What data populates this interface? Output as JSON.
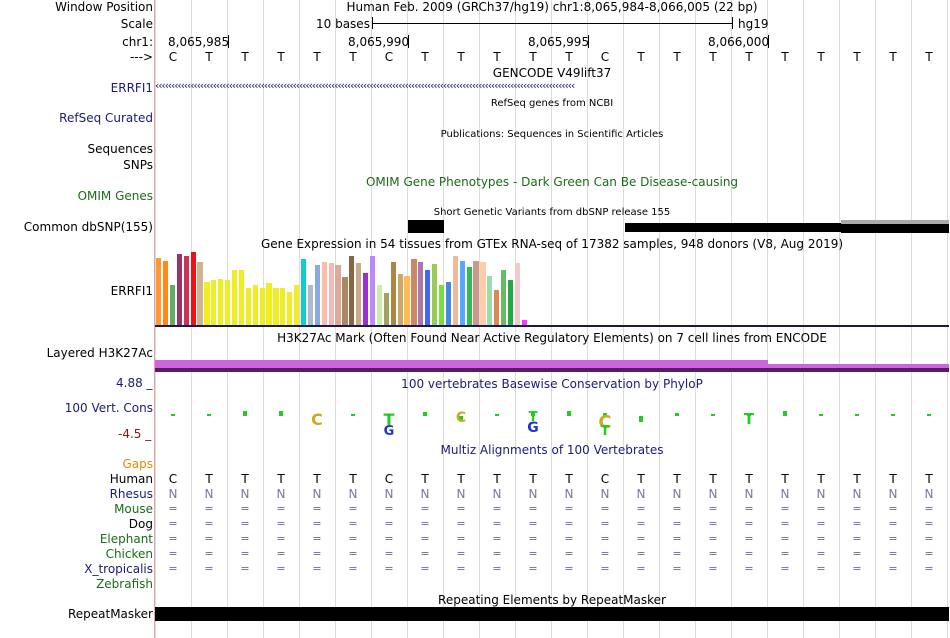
{
  "header": {
    "window_position_label": "Window Position",
    "window_position_value": "Human Feb. 2009 (GRCh37/hg19)   chr1:8,065,984-8,066,005 (22 bp)",
    "scale_label": "Scale",
    "scale_text": "10 bases",
    "scale_assembly": "hg19",
    "chrom_label": "chr1:",
    "coords": [
      "8,065,985",
      "8,065,990",
      "8,065,995",
      "8,066,000"
    ],
    "strand_label": "--->"
  },
  "sequence": [
    "C",
    "T",
    "T",
    "T",
    "T",
    "T",
    "C",
    "T",
    "T",
    "T",
    "T",
    "T",
    "C",
    "T",
    "T",
    "T",
    "T",
    "T",
    "T",
    "T",
    "T",
    "T"
  ],
  "tracks": {
    "gencode": {
      "title": "GENCODE V49lift37",
      "gene_label": "ERRFI1",
      "arrows": "‹‹‹‹‹‹‹‹‹‹‹‹‹‹‹‹‹‹‹‹‹‹‹‹‹‹‹‹‹‹‹‹‹‹‹‹‹‹‹‹‹‹‹‹‹‹‹‹‹‹‹‹‹‹‹‹‹‹‹‹‹‹‹‹‹‹‹‹‹‹‹‹‹‹‹‹‹‹‹‹‹‹‹‹‹‹‹‹‹‹‹‹‹‹‹‹‹‹‹‹‹‹‹‹‹‹‹‹‹‹‹‹‹‹‹‹‹‹‹‹‹‹‹‹‹‹‹‹‹‹‹"
    },
    "refseq": {
      "title": "RefSeq genes from NCBI",
      "label": "RefSeq Curated"
    },
    "publications": {
      "title": "Publications: Sequences in Scientific Articles",
      "label_line1": "Sequences",
      "label_line2": "SNPs"
    },
    "omim": {
      "title": "OMIM Gene Phenotypes - Dark Green Can Be Disease-causing",
      "label": "OMIM Genes"
    },
    "dbsnp": {
      "title": "Short Genetic Variants from dbSNP release 155",
      "label": "Common dbSNP(155)"
    },
    "gtex": {
      "title": "Gene Expression in 54 tissues from GTEx RNA-seq of 17382 samples, 948 donors (V8, Aug 2019)",
      "label": "ERRFI1"
    },
    "h3k27ac": {
      "title": "H3K27Ac Mark (Often Found Near Active Regulatory Elements) on 7 cell lines from ENCODE",
      "label": "Layered H3K27Ac"
    },
    "phylop": {
      "title": "100 vertebrates Basewise Conservation by PhyloP",
      "label": "100 Vert. Cons",
      "max": "4.88 _",
      "min": "-4.5 _"
    },
    "multiz": {
      "title": "Multiz Alignments of 100 Vertebrates",
      "gaps_label": "Gaps",
      "species": [
        "Human",
        "Rhesus",
        "Mouse",
        "Dog",
        "Elephant",
        "Chicken",
        "X_tropicalis",
        "Zebrafish"
      ],
      "rhesus_char": "N",
      "eq_char": "="
    },
    "repeatmasker": {
      "title": "Repeating Elements by RepeatMasker",
      "label": "RepeatMasker"
    }
  },
  "chart_data": {
    "type": "bar",
    "title": "Gene Expression in 54 tissues from GTEx RNA-seq of 17382 samples, 948 donors (V8, Aug 2019)",
    "xlabel": "",
    "ylabel": "",
    "ylim": [
      0,
      100
    ],
    "values": [
      92,
      88,
      56,
      97,
      95,
      100,
      86,
      60,
      62,
      64,
      62,
      75,
      75,
      52,
      56,
      52,
      58,
      52,
      52,
      46,
      56,
      90,
      56,
      82,
      86,
      85,
      82,
      66,
      95,
      85,
      72,
      95,
      55,
      44,
      86,
      70,
      68,
      90,
      86,
      75,
      84,
      55,
      60,
      95,
      88,
      80,
      88,
      86,
      68,
      48,
      75,
      62,
      85,
      8
    ],
    "colors": [
      "#ff9933",
      "#ff8a1a",
      "#66aa66",
      "#993366",
      "#cc3355",
      "#ee1111",
      "#d2b48c",
      "#eeee22",
      "#eeee22",
      "#eeee22",
      "#eeee22",
      "#eeee22",
      "#eeee22",
      "#eeee22",
      "#eeee22",
      "#eeee22",
      "#eeee22",
      "#eeee22",
      "#eeee22",
      "#eeee22",
      "#eeee22",
      "#11cccc",
      "#aabbcc",
      "#88aadd",
      "#ffbbaa",
      "#eebbbb",
      "#ddaa99",
      "#aa8866",
      "#886644",
      "#ccaa88",
      "#9933cc",
      "#bb88ff",
      "#cceeaa",
      "#a8a060",
      "#aa8844",
      "#ccaa66",
      "#ffbb55",
      "#cc8866",
      "#aa77aa",
      "#4466ee",
      "#99cc55",
      "#77dd44",
      "#4488dd",
      "#eebb99",
      "#55aaff",
      "#33bb55",
      "#cc9988",
      "#ffccaa",
      "#99ddaa",
      "#dd8855",
      "#66bb66",
      "#22aa44",
      "#eecccc",
      "#ff33ff"
    ]
  },
  "phylop_data": {
    "values": [
      0.1,
      0.2,
      0.5,
      0.5,
      0.1,
      0.1,
      0.1,
      0.4,
      -0.4,
      0.2,
      0.3,
      0.5,
      0.3,
      -0.6,
      0.3,
      0.2,
      0.1,
      0.5,
      0.1,
      0.1,
      0.1,
      0.1
    ]
  },
  "colors": {
    "navy": "#1a1a7a",
    "green": "#1a6b1a",
    "gaps": "#e58a00",
    "maroon": "#7a1a1a",
    "h3k27ac": "#cc66dd",
    "phylop_green": "#22cc22"
  }
}
